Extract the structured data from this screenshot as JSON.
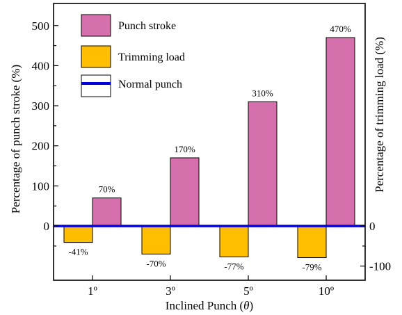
{
  "chart_data": {
    "type": "bar",
    "categories": [
      "1º",
      "3º",
      "5º",
      "10º"
    ],
    "series": [
      {
        "name": "Trimming load",
        "values": [
          -41,
          -70,
          -77,
          -79
        ],
        "labels": [
          "-41%",
          "-70%",
          "-77%",
          "-79%"
        ],
        "color": "#FFBF00"
      },
      {
        "name": "Punch stroke",
        "values": [
          70,
          170,
          310,
          470
        ],
        "labels": [
          "70%",
          "170%",
          "310%",
          "470%"
        ],
        "color": "#D670AC"
      }
    ],
    "baseline": {
      "name": "Normal punch",
      "value": 0,
      "color": "#0000DD"
    },
    "xlabel_prefix": "Inclined Punch (",
    "xlabel_symbol": "θ",
    "xlabel_suffix": ")",
    "ylabel_left": "Percentage of punch stroke (%)",
    "ylabel_right": "Percentage of trimming load (%)",
    "ylim": [
      -130,
      520
    ],
    "left_ticks": [
      0,
      100,
      200,
      300,
      400,
      500
    ],
    "right_ticks": [
      -100,
      0
    ],
    "legend_position": "top-left",
    "grid": false
  }
}
